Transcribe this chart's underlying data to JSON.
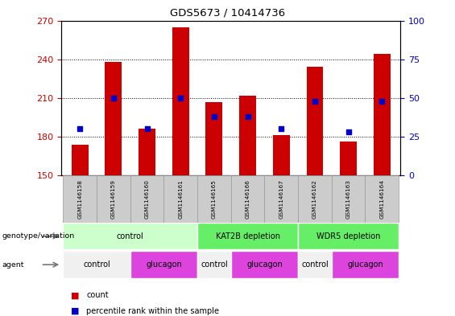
{
  "title": "GDS5673 / 10414736",
  "samples": [
    "GSM1146158",
    "GSM1146159",
    "GSM1146160",
    "GSM1146161",
    "GSM1146165",
    "GSM1146166",
    "GSM1146167",
    "GSM1146162",
    "GSM1146163",
    "GSM1146164"
  ],
  "counts": [
    174,
    238,
    186,
    265,
    207,
    212,
    181,
    234,
    176,
    244
  ],
  "percentiles": [
    30,
    50,
    30,
    50,
    38,
    38,
    30,
    48,
    28,
    48
  ],
  "ylim_left": [
    150,
    270
  ],
  "ylim_right": [
    0,
    100
  ],
  "yticks_left": [
    150,
    180,
    210,
    240,
    270
  ],
  "yticks_right": [
    0,
    25,
    50,
    75,
    100
  ],
  "bar_color": "#cc0000",
  "dot_color": "#0000cc",
  "bar_bottom": 150,
  "groups": [
    {
      "label": "control",
      "start": 0,
      "end": 4,
      "color": "#ccffcc"
    },
    {
      "label": "KAT2B depletion",
      "start": 4,
      "end": 7,
      "color": "#66ee66"
    },
    {
      "label": "WDR5 depletion",
      "start": 7,
      "end": 10,
      "color": "#66ee66"
    }
  ],
  "agents": [
    {
      "label": "control",
      "start": 0,
      "end": 2,
      "color": "#f0f0f0"
    },
    {
      "label": "glucagon",
      "start": 2,
      "end": 4,
      "color": "#dd44dd"
    },
    {
      "label": "control",
      "start": 4,
      "end": 5,
      "color": "#f0f0f0"
    },
    {
      "label": "glucagon",
      "start": 5,
      "end": 7,
      "color": "#dd44dd"
    },
    {
      "label": "control",
      "start": 7,
      "end": 8,
      "color": "#f0f0f0"
    },
    {
      "label": "glucagon",
      "start": 8,
      "end": 10,
      "color": "#dd44dd"
    }
  ],
  "genotype_label": "genotype/variation",
  "agent_label": "agent",
  "legend_count": "count",
  "legend_percentile": "percentile rank within the sample",
  "tick_label_color_left": "#cc0000",
  "tick_label_color_right": "#0000cc",
  "sample_bg_color": "#cccccc",
  "sample_border_color": "#999999"
}
